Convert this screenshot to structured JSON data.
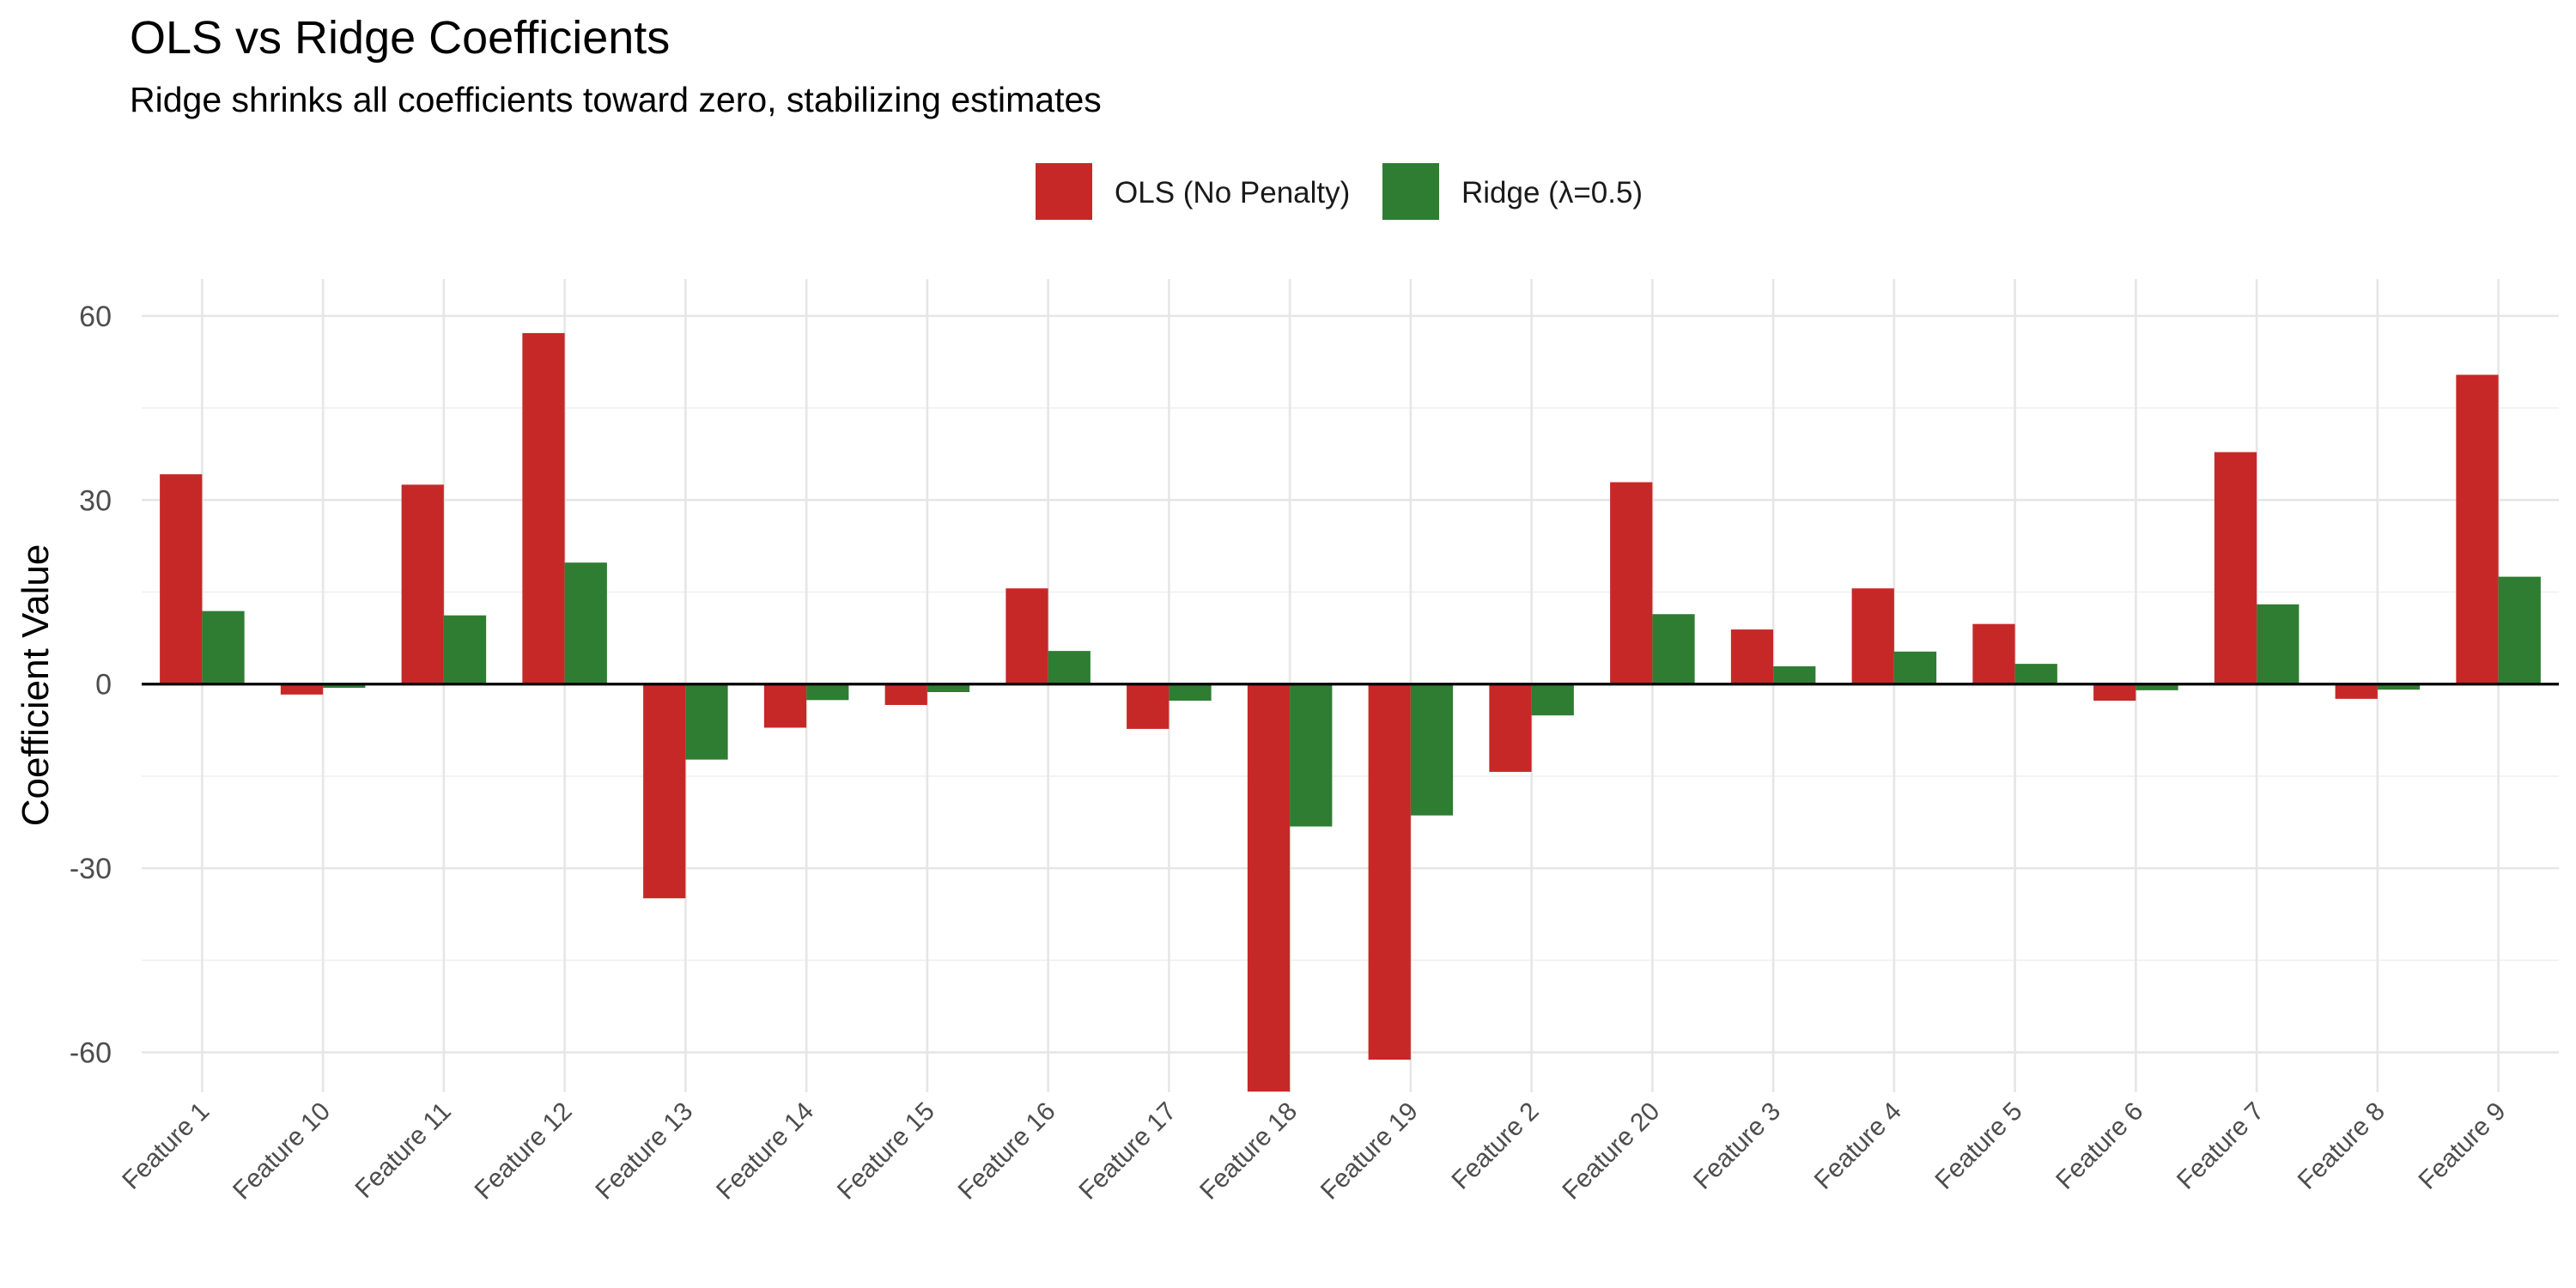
{
  "chart_data": {
    "type": "bar",
    "title": "OLS vs Ridge Coefficients",
    "subtitle": "Ridge shrinks all coefficients toward zero, stabilizing estimates",
    "xlabel": "",
    "ylabel": "Coefficient Value",
    "ylim": [
      -66.5,
      66
    ],
    "yticks": [
      60,
      30,
      0,
      -30,
      -60
    ],
    "ytick_labels": [
      "60",
      "30",
      "0",
      "-30",
      "-60"
    ],
    "grid": true,
    "legend_position": "top",
    "categories": [
      "Feature 1",
      "Feature 10",
      "Feature 11",
      "Feature 12",
      "Feature 13",
      "Feature 14",
      "Feature 15",
      "Feature 16",
      "Feature 17",
      "Feature 18",
      "Feature 19",
      "Feature 2",
      "Feature 20",
      "Feature 3",
      "Feature 4",
      "Feature 5",
      "Feature 6",
      "Feature 7",
      "Feature 8",
      "Feature 9"
    ],
    "series": [
      {
        "name": "OLS (No Penalty)",
        "color": "#C62828",
        "values": [
          34.2,
          -1.7,
          32.5,
          57.2,
          -34.9,
          -7.1,
          -3.4,
          15.6,
          -7.3,
          -66.4,
          -61.2,
          -14.3,
          32.9,
          8.9,
          15.6,
          9.8,
          -2.7,
          37.8,
          -2.4,
          50.4
        ]
      },
      {
        "name": "Ridge (λ=0.5)",
        "color": "#2E7D32",
        "values": [
          11.9,
          -0.6,
          11.2,
          19.8,
          -12.3,
          -2.6,
          -1.3,
          5.4,
          -2.7,
          -23.2,
          -21.4,
          -5.1,
          11.4,
          2.9,
          5.3,
          3.3,
          -1.0,
          13.0,
          -0.9,
          17.5
        ]
      }
    ]
  }
}
